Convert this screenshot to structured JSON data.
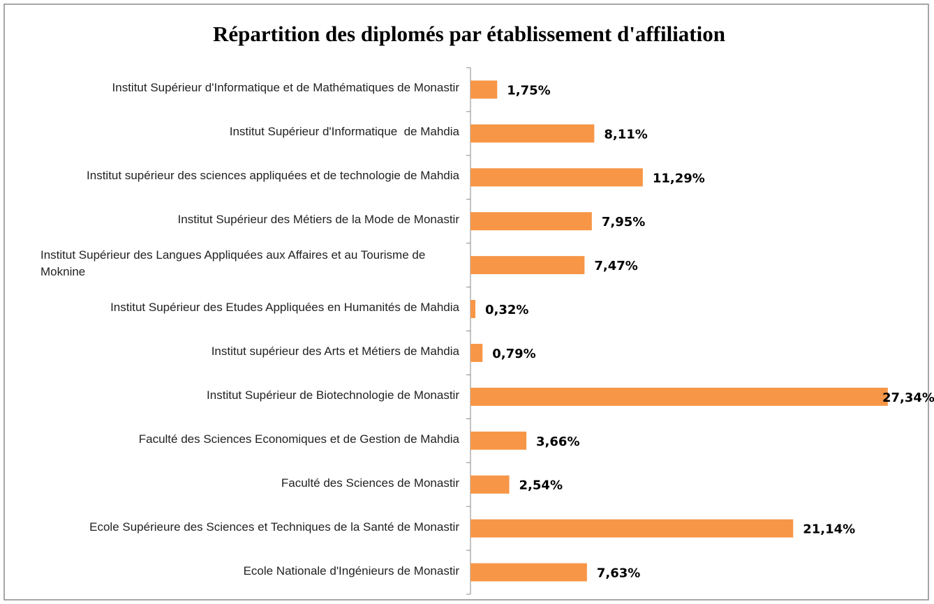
{
  "chart_data": {
    "type": "bar",
    "orientation": "horizontal",
    "title": "Répartition des diplomés par établissement d'affiliation",
    "categories": [
      "Institut Supérieur d'Informatique et de Mathématiques de Monastir",
      "Institut Supérieur d'Informatique  de Mahdia",
      "Institut supérieur des sciences appliquées et de technologie de Mahdia",
      "Institut Supérieur des Métiers de la Mode de Monastir",
      "Institut Supérieur des Langues Appliquées aux Affaires et au Tourisme de Moknine",
      "Institut Supérieur des Etudes Appliquées en Humanités de Mahdia",
      "Institut supérieur des Arts et Métiers de Mahdia",
      "Institut Supérieur de Biotechnologie de Monastir",
      "Faculté des Sciences Economiques et de Gestion de Mahdia",
      "Faculté des Sciences de Monastir",
      "Ecole Supérieure des Sciences et Techniques de la Santé de Monastir",
      "Ecole Nationale d'Ingénieurs de Monastir"
    ],
    "values": [
      1.75,
      8.11,
      11.29,
      7.95,
      7.47,
      0.32,
      0.79,
      27.34,
      3.66,
      2.54,
      21.14,
      7.63
    ],
    "value_labels": [
      "1,75%",
      "8,11%",
      "11,29%",
      "7,95%",
      "7,47%",
      "0,32%",
      "0,79%",
      "27,34%",
      "3,66%",
      "2,54%",
      "21,14%",
      "7,63%"
    ],
    "color": "#f79646",
    "xlim": [
      0,
      30
    ]
  }
}
